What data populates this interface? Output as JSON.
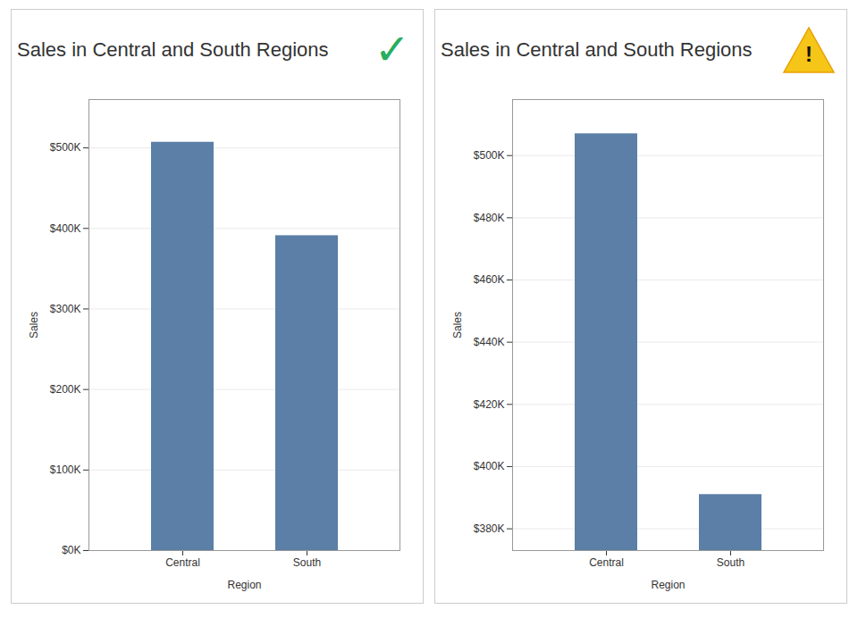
{
  "chart_data": [
    {
      "type": "bar",
      "title": "Sales in Central and South Regions",
      "categories": [
        "Central",
        "South"
      ],
      "values": [
        507000,
        391000
      ],
      "color": "#5b7fa6",
      "xlabel": "Region",
      "ylabel": "Sales",
      "ylim": [
        0,
        560000
      ],
      "yticks": [
        {
          "value": 0,
          "label": "$0K"
        },
        {
          "value": 100000,
          "label": "$100K"
        },
        {
          "value": 200000,
          "label": "$200K"
        },
        {
          "value": 300000,
          "label": "$300K"
        },
        {
          "value": 400000,
          "label": "$400K"
        },
        {
          "value": 500000,
          "label": "$500K"
        }
      ],
      "grid": true,
      "annotations": [
        "✓"
      ]
    },
    {
      "type": "bar",
      "title": "Sales in Central and South Regions",
      "categories": [
        "Central",
        "South"
      ],
      "values": [
        507000,
        391000
      ],
      "color": "#5b7fa6",
      "xlabel": "Region",
      "ylabel": "Sales",
      "ylim": [
        373000,
        518000
      ],
      "yticks": [
        {
          "value": 380000,
          "label": "$380K"
        },
        {
          "value": 400000,
          "label": "$400K"
        },
        {
          "value": 420000,
          "label": "$420K"
        },
        {
          "value": 440000,
          "label": "$440K"
        },
        {
          "value": 460000,
          "label": "$460K"
        },
        {
          "value": 480000,
          "label": "$480K"
        },
        {
          "value": 500000,
          "label": "$500K"
        }
      ],
      "grid": true,
      "annotations": [
        "!"
      ]
    }
  ]
}
